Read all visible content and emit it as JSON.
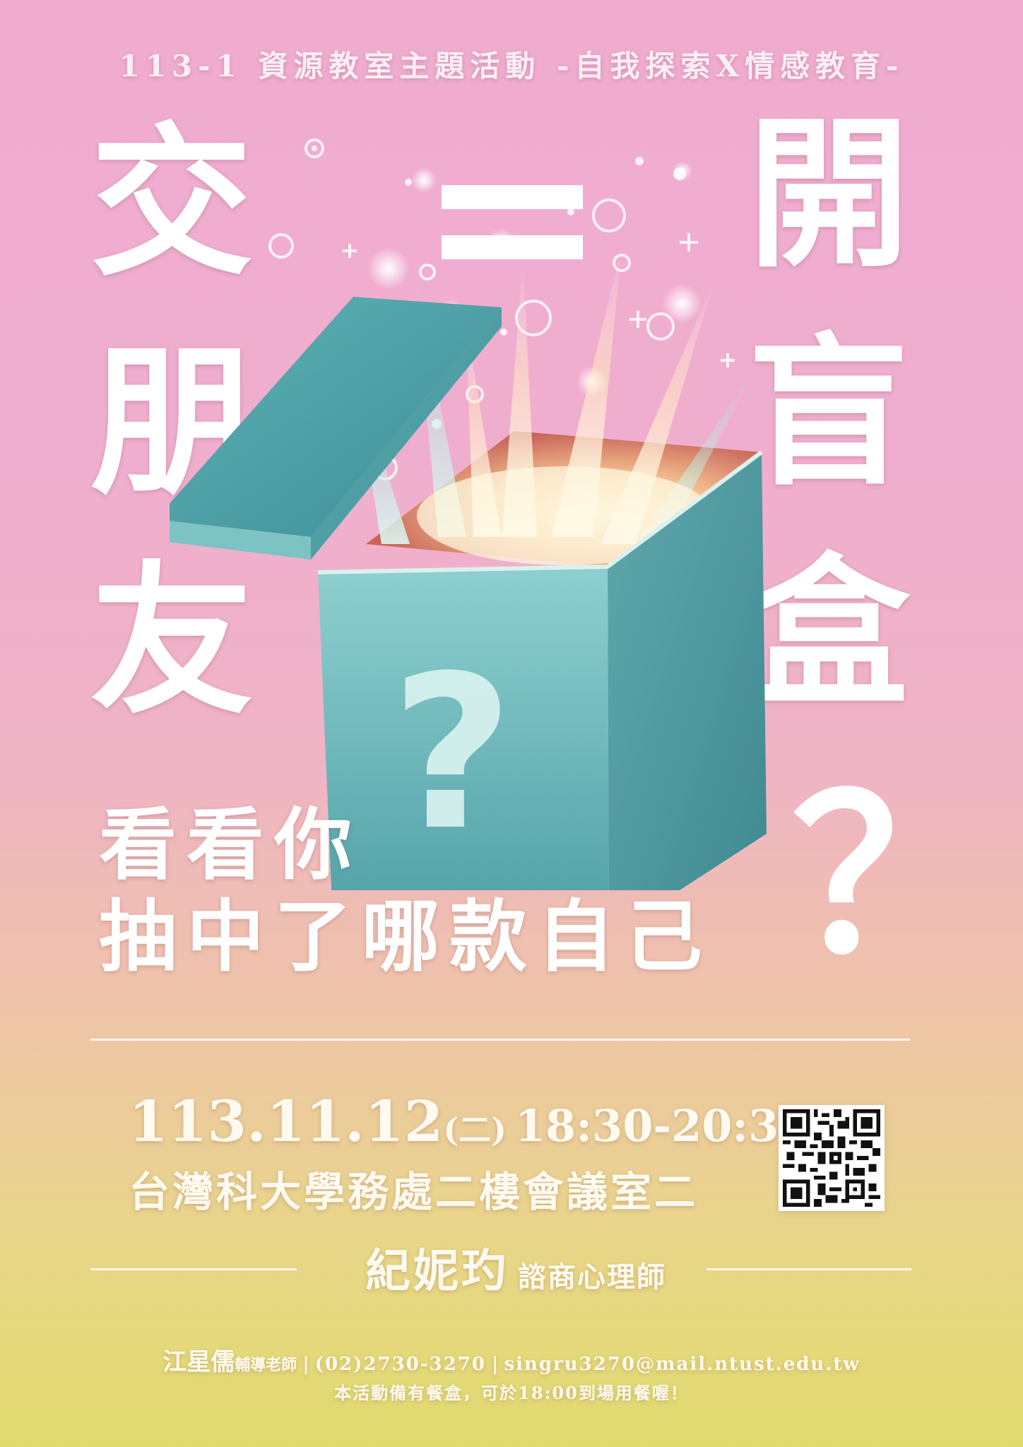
{
  "subtitle": "113-1 資源教室主題活動 -自我探索X情感教育-",
  "headline": {
    "left": [
      "交",
      "朋",
      "友"
    ],
    "equals": "=",
    "right": [
      "開",
      "盲",
      "盒"
    ]
  },
  "box_icon": "question-mark",
  "tagline": {
    "line1": "看看你",
    "line2": "抽中了哪款自己",
    "question_mark": "？"
  },
  "event": {
    "date": "113.11.12",
    "weekday": "(二)",
    "time": "18:30-20:30",
    "venue": "台灣科大學務處二樓會議室二"
  },
  "speaker": {
    "name": "紀妮玓",
    "title": "諮商心理師"
  },
  "contact": {
    "name": "江星儒",
    "role": "輔導老師",
    "separator": "|",
    "phone": "(02)2730-3270",
    "email": "singru3270@mail.ntust.edu.tw"
  },
  "note": "本活動備有餐盒，可於18:00到場用餐喔！",
  "colors": {
    "background_top": "#efaccf",
    "background_bottom": "#e0da6e",
    "box": "#5fb5b6",
    "text": "#ffffff"
  }
}
